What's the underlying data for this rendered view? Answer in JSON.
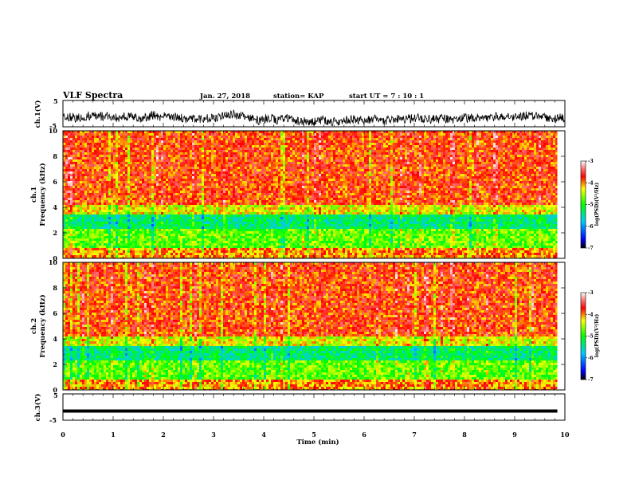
{
  "header": {
    "title": "VLF Spectra",
    "date": "Jan. 27, 2018",
    "station": "station= KAP",
    "start": "start  UT =  7 : 10 : 1"
  },
  "chart_data": [
    {
      "type": "line",
      "ylabel": "ch.1(V)",
      "ylim": [
        -5,
        5
      ],
      "yticks": [
        "5",
        "-5"
      ],
      "xlim": [
        0,
        10
      ],
      "description_series": "noisy waveform roughly between -4 and 2 V"
    },
    {
      "type": "heatmap",
      "ylabel_lines": [
        "ch.1",
        "Frequency  (kHz)"
      ],
      "ylim": [
        0,
        10
      ],
      "yticks": [
        "0",
        "2",
        "4",
        "6",
        "8",
        "10"
      ],
      "xlim": [
        0,
        9.85
      ],
      "colorbar": {
        "label": "log(PSD)(V²/Hz)",
        "range": [
          -7,
          -3
        ],
        "ticks": [
          "-3",
          "-4",
          "-5",
          "-6",
          "-7"
        ]
      }
    },
    {
      "type": "heatmap",
      "ylabel_lines": [
        "ch.2",
        "Frequency  (kHz)"
      ],
      "ylim": [
        0,
        10
      ],
      "yticks": [
        "0",
        "2",
        "4",
        "6",
        "8",
        "10"
      ],
      "xlim": [
        0,
        9.85
      ],
      "colorbar": {
        "label": "log(PSD)(V²/Hz)",
        "range": [
          -7,
          -3
        ],
        "ticks": [
          "-3",
          "-4",
          "-5",
          "-6",
          "-7"
        ]
      }
    },
    {
      "type": "line",
      "ylabel": "ch.3(V)",
      "ylim": [
        -5,
        5
      ],
      "yticks": [
        "5",
        "-5"
      ],
      "constant_value": -1.5
    }
  ],
  "xaxis": {
    "label": "Time  (min)",
    "ticks": [
      "0",
      "1",
      "2",
      "3",
      "4",
      "5",
      "6",
      "7",
      "8",
      "9",
      "10"
    ],
    "range": [
      0,
      10
    ]
  }
}
